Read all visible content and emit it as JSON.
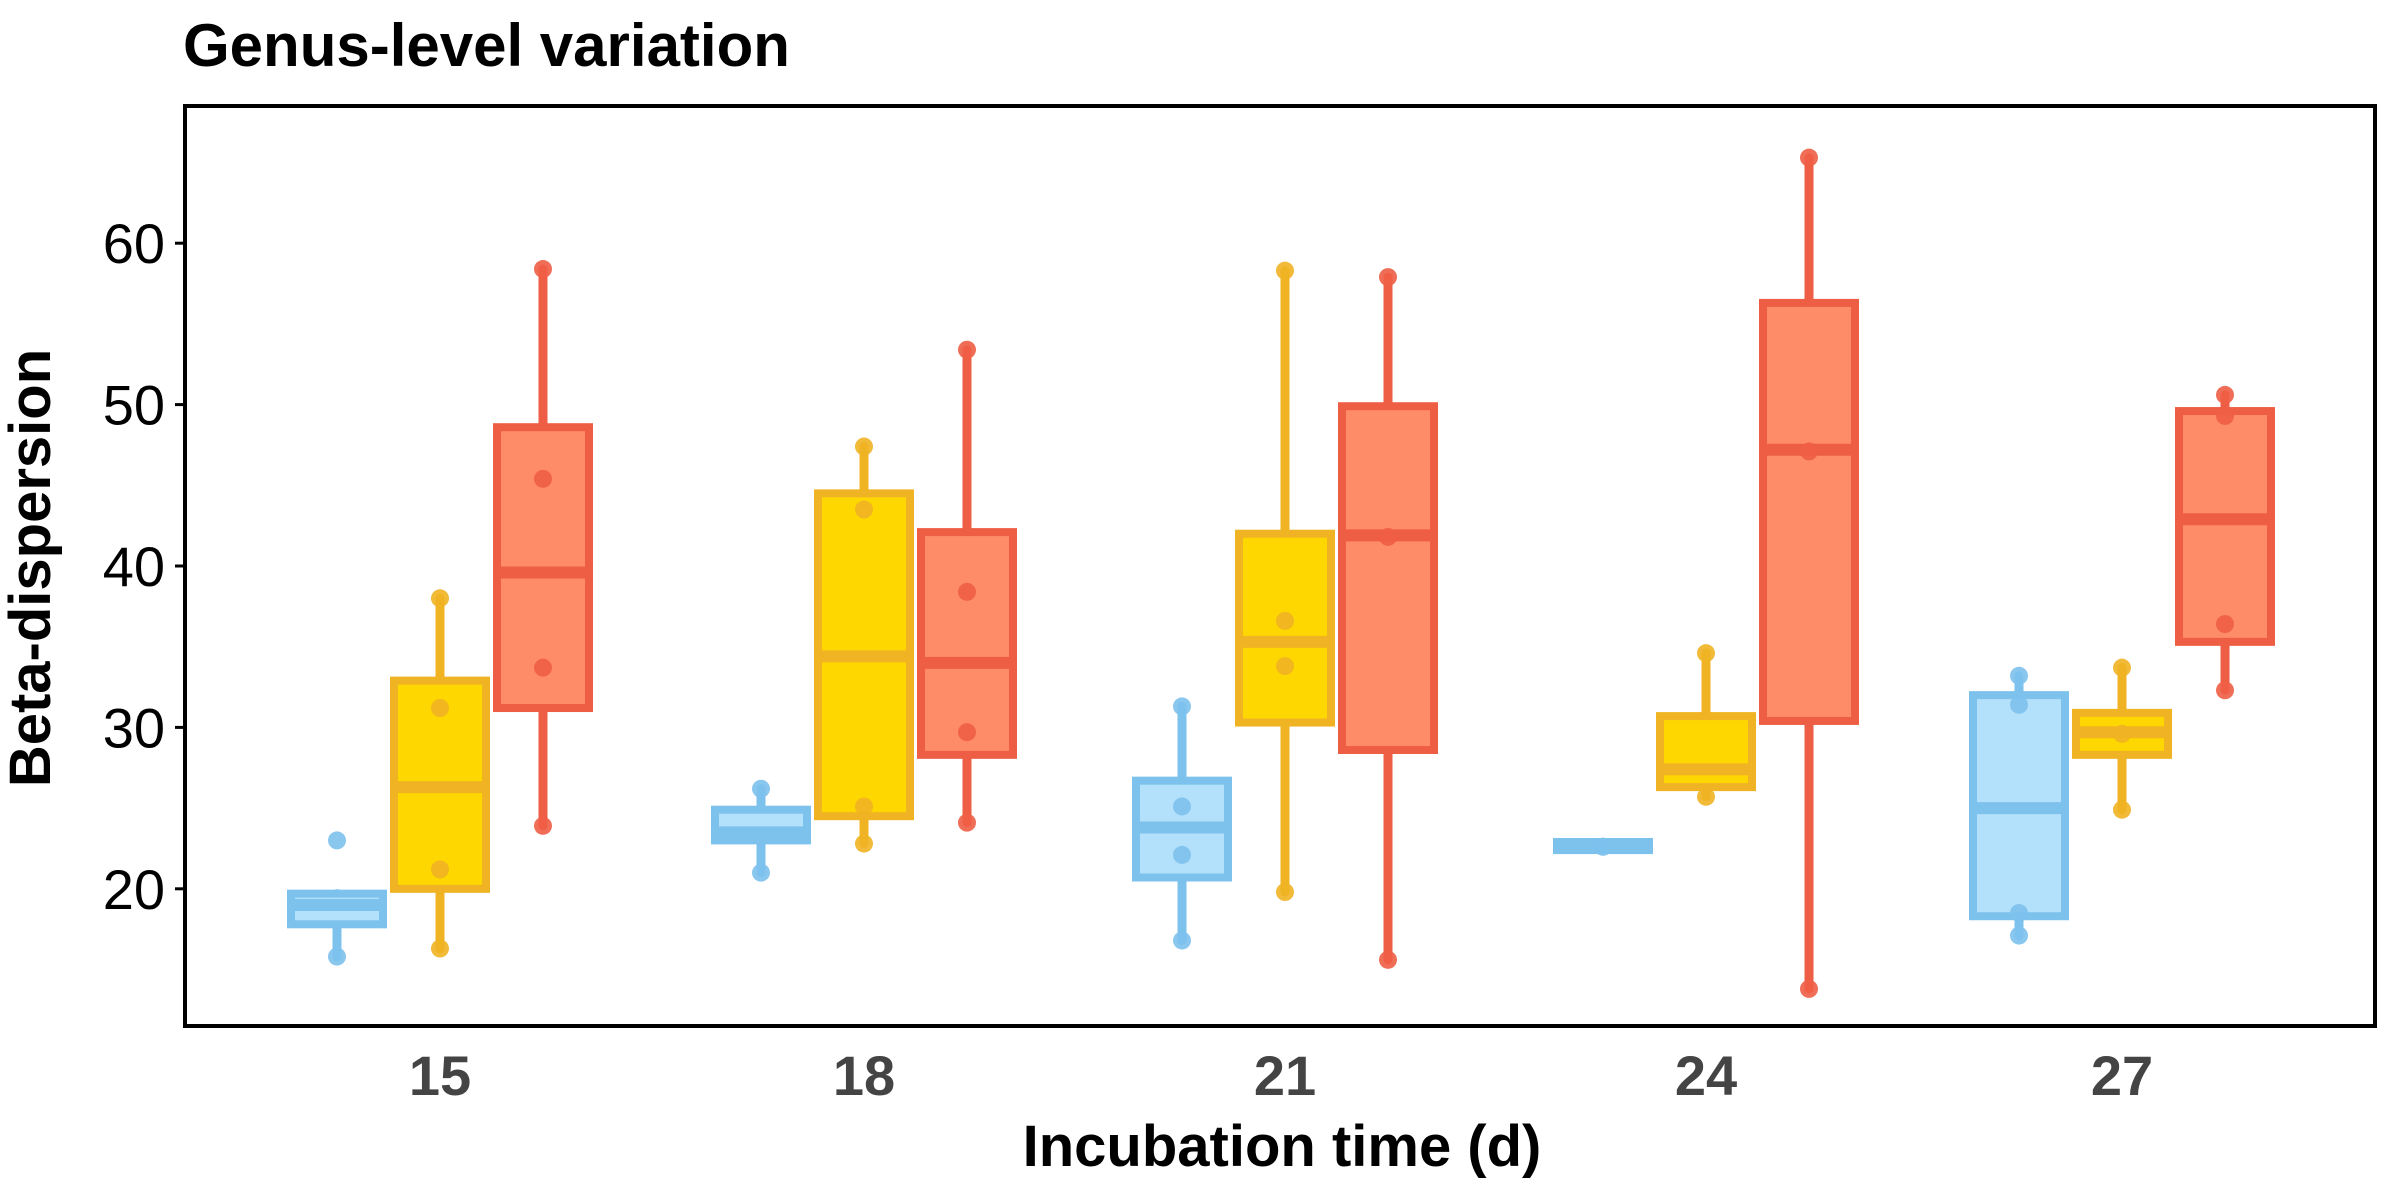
{
  "chart_data": {
    "type": "box",
    "title": "Genus-level variation",
    "xlabel": "Incubation time (d)",
    "ylabel": "Beta-dispersion",
    "categories": [
      "15",
      "18",
      "21",
      "24",
      "27"
    ],
    "ylim": [
      11.5,
      68.5
    ],
    "yticks": [
      20,
      30,
      40,
      50,
      60
    ],
    "grid": false,
    "legend": "none",
    "series": [
      {
        "color_fill": "#B3E0FA",
        "color_line": "#7DC1ED",
        "boxes": [
          {
            "q1": 17.8,
            "median": 19.0,
            "q3": 19.7,
            "whisker_low": 15.8,
            "whisker_high": 19.7,
            "points": [
              23.0,
              15.8
            ]
          },
          {
            "q1": 23.0,
            "median": 23.5,
            "q3": 24.9,
            "whisker_low": 21.0,
            "whisker_high": 26.2,
            "points": [
              26.2,
              21.0
            ]
          },
          {
            "q1": 20.7,
            "median": 23.8,
            "q3": 26.7,
            "whisker_low": 16.8,
            "whisker_high": 31.3,
            "points": [
              31.3,
              25.1,
              22.1,
              16.8
            ]
          },
          {
            "q1": 22.4,
            "median": 22.6,
            "q3": 22.9,
            "whisker_low": 22.4,
            "whisker_high": 22.9,
            "points": [
              22.6
            ]
          },
          {
            "q1": 18.3,
            "median": 25.0,
            "q3": 32.0,
            "whisker_low": 17.1,
            "whisker_high": 33.2,
            "points": [
              33.2,
              31.4,
              18.5,
              17.1
            ]
          }
        ]
      },
      {
        "color_fill": "#FFD700",
        "color_line": "#F0B323",
        "boxes": [
          {
            "q1": 20.0,
            "median": 26.3,
            "q3": 32.9,
            "whisker_low": 16.3,
            "whisker_high": 38.0,
            "points": [
              38.0,
              31.2,
              21.2,
              16.3
            ]
          },
          {
            "q1": 24.5,
            "median": 34.4,
            "q3": 44.5,
            "whisker_low": 22.8,
            "whisker_high": 47.4,
            "points": [
              47.4,
              43.5,
              25.1,
              22.8
            ]
          },
          {
            "q1": 30.3,
            "median": 35.3,
            "q3": 42.0,
            "whisker_low": 19.8,
            "whisker_high": 58.3,
            "points": [
              58.3,
              36.6,
              33.8,
              19.8
            ]
          },
          {
            "q1": 26.3,
            "median": 27.4,
            "q3": 30.7,
            "whisker_low": 25.7,
            "whisker_high": 34.6,
            "points": [
              34.6,
              25.7
            ]
          },
          {
            "q1": 28.3,
            "median": 29.7,
            "q3": 30.9,
            "whisker_low": 24.9,
            "whisker_high": 33.7,
            "points": [
              33.7,
              29.6,
              24.9
            ]
          }
        ]
      },
      {
        "color_fill": "#FF8C69",
        "color_line": "#EE5E45",
        "boxes": [
          {
            "q1": 31.2,
            "median": 39.6,
            "q3": 48.6,
            "whisker_low": 23.9,
            "whisker_high": 58.4,
            "points": [
              58.4,
              45.4,
              33.7,
              23.9
            ]
          },
          {
            "q1": 28.3,
            "median": 34.0,
            "q3": 42.1,
            "whisker_low": 24.1,
            "whisker_high": 53.4,
            "points": [
              53.4,
              38.4,
              29.7,
              24.1
            ]
          },
          {
            "q1": 28.6,
            "median": 41.9,
            "q3": 49.9,
            "whisker_low": 15.6,
            "whisker_high": 57.9,
            "points": [
              57.9,
              41.8,
              15.6
            ]
          },
          {
            "q1": 30.4,
            "median": 47.2,
            "q3": 56.3,
            "whisker_low": 13.8,
            "whisker_high": 65.3,
            "points": [
              65.3,
              47.1,
              13.8
            ]
          },
          {
            "q1": 35.3,
            "median": 42.9,
            "q3": 49.6,
            "whisker_low": 32.3,
            "whisker_high": 50.6,
            "points": [
              50.6,
              49.3,
              36.4,
              32.3
            ]
          }
        ]
      }
    ]
  }
}
